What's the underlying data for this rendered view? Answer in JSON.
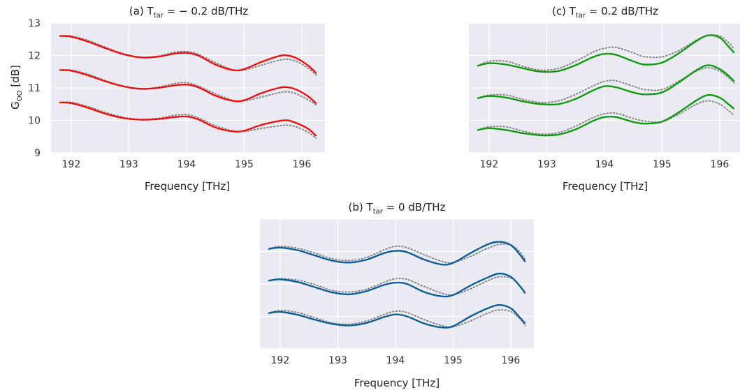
{
  "chart_data": [
    {
      "id": "a",
      "type": "line",
      "title_pre": "(a) T",
      "title_sub": "tar",
      "title_post": " = − 0.2 dB/THz",
      "xlabel": "Frequency [THz]",
      "ylabel_main": "G",
      "ylabel_sub": "OO",
      "ylabel_post": " [dB]",
      "xlim": [
        191.65,
        196.4
      ],
      "ylim": [
        9,
        13
      ],
      "xticks": [
        192,
        193,
        194,
        195,
        196
      ],
      "yticks": [
        9,
        10,
        11,
        12,
        13
      ],
      "grid": true,
      "line_color": "#ee1111",
      "ref_color": "#888888",
      "x": [
        191.8,
        192.0,
        192.3,
        192.6,
        192.9,
        193.2,
        193.5,
        193.8,
        194.0,
        194.2,
        194.5,
        194.8,
        195.0,
        195.3,
        195.6,
        195.75,
        195.9,
        196.1,
        196.25
      ],
      "series": [
        {
          "values": [
            12.6,
            12.58,
            12.42,
            12.22,
            12.04,
            11.94,
            11.96,
            12.06,
            12.08,
            12.0,
            11.72,
            11.55,
            11.58,
            11.8,
            11.98,
            12.0,
            11.92,
            11.7,
            11.45
          ]
        },
        {
          "values": [
            11.55,
            11.53,
            11.38,
            11.2,
            11.05,
            10.97,
            11.0,
            11.08,
            11.1,
            11.02,
            10.76,
            10.6,
            10.62,
            10.84,
            11.0,
            11.02,
            10.95,
            10.75,
            10.52
          ]
        },
        {
          "values": [
            10.55,
            10.53,
            10.38,
            10.2,
            10.07,
            10.02,
            10.04,
            10.1,
            10.12,
            10.03,
            9.78,
            9.66,
            9.68,
            9.86,
            9.98,
            10.0,
            9.92,
            9.75,
            9.52
          ]
        }
      ],
      "ref_series": [
        {
          "values": [
            12.6,
            12.6,
            12.46,
            12.25,
            12.06,
            11.95,
            11.98,
            12.1,
            12.12,
            12.04,
            11.78,
            11.56,
            11.55,
            11.7,
            11.85,
            11.88,
            11.82,
            11.62,
            11.4
          ]
        },
        {
          "values": [
            11.55,
            11.55,
            11.42,
            11.22,
            11.06,
            10.98,
            11.02,
            11.14,
            11.16,
            11.06,
            10.82,
            10.62,
            10.6,
            10.72,
            10.85,
            10.88,
            10.82,
            10.64,
            10.48
          ]
        },
        {
          "values": [
            10.55,
            10.56,
            10.42,
            10.24,
            10.1,
            10.03,
            10.06,
            10.16,
            10.18,
            10.08,
            9.84,
            9.68,
            9.66,
            9.75,
            9.83,
            9.85,
            9.8,
            9.64,
            9.45
          ]
        }
      ]
    },
    {
      "id": "c",
      "type": "line",
      "title_pre": "(c) T",
      "title_sub": "tar",
      "title_post": " = 0.2 dB/THz",
      "xlabel": "Frequency [THz]",
      "xlim": [
        191.65,
        196.4
      ],
      "ylim": [
        9,
        13
      ],
      "xticks": [
        192,
        193,
        194,
        195,
        196
      ],
      "yticks": [
        9,
        10,
        11,
        12,
        13
      ],
      "grid": true,
      "line_color": "#119911",
      "ref_color": "#888888",
      "x": [
        191.8,
        192.0,
        192.3,
        192.6,
        192.9,
        193.2,
        193.5,
        193.8,
        194.0,
        194.2,
        194.5,
        194.7,
        195.0,
        195.3,
        195.6,
        195.8,
        196.0,
        196.15,
        196.25
      ],
      "series": [
        {
          "values": [
            11.68,
            11.76,
            11.72,
            11.6,
            11.5,
            11.52,
            11.7,
            11.95,
            12.05,
            12.02,
            11.82,
            11.72,
            11.78,
            12.08,
            12.45,
            12.62,
            12.55,
            12.28,
            12.08
          ]
        },
        {
          "values": [
            10.68,
            10.75,
            10.7,
            10.58,
            10.5,
            10.5,
            10.66,
            10.92,
            11.05,
            11.02,
            10.86,
            10.8,
            10.86,
            11.18,
            11.55,
            11.7,
            11.58,
            11.38,
            11.2
          ]
        },
        {
          "values": [
            9.7,
            9.76,
            9.7,
            9.6,
            9.54,
            9.56,
            9.72,
            9.98,
            10.1,
            10.1,
            9.95,
            9.9,
            9.96,
            10.26,
            10.62,
            10.78,
            10.7,
            10.5,
            10.35
          ]
        }
      ],
      "ref_series": [
        {
          "values": [
            11.68,
            11.82,
            11.82,
            11.66,
            11.55,
            11.6,
            11.82,
            12.1,
            12.22,
            12.25,
            12.08,
            11.96,
            11.96,
            12.16,
            12.48,
            12.62,
            12.6,
            12.4,
            12.2
          ]
        },
        {
          "values": [
            10.68,
            10.78,
            10.78,
            10.64,
            10.55,
            10.6,
            10.8,
            11.06,
            11.2,
            11.22,
            11.05,
            10.95,
            10.95,
            11.22,
            11.52,
            11.62,
            11.52,
            11.32,
            11.16
          ]
        },
        {
          "values": [
            9.7,
            9.8,
            9.8,
            9.66,
            9.58,
            9.62,
            9.82,
            10.08,
            10.2,
            10.22,
            10.06,
            9.98,
            9.96,
            10.2,
            10.5,
            10.6,
            10.5,
            10.3,
            10.15
          ]
        }
      ]
    },
    {
      "id": "b",
      "type": "line",
      "title_pre": "(b) T",
      "title_sub": "tar",
      "title_post": " = 0 dB/THz",
      "xlabel": "Frequency [THz]",
      "xlim": [
        191.65,
        196.4
      ],
      "ylim": [
        9,
        13
      ],
      "xticks": [
        192,
        193,
        194,
        195,
        196
      ],
      "yticks": [
        9,
        10,
        11,
        12,
        13
      ],
      "grid": true,
      "line_color": "#0d5e94",
      "ref_color": "#888888",
      "x": [
        191.8,
        192.0,
        192.3,
        192.6,
        192.9,
        193.2,
        193.5,
        193.8,
        194.0,
        194.2,
        194.5,
        194.8,
        195.0,
        195.3,
        195.6,
        195.8,
        196.0,
        196.15,
        196.25
      ],
      "series": [
        {
          "values": [
            12.08,
            12.12,
            12.04,
            11.88,
            11.72,
            11.66,
            11.75,
            11.95,
            12.02,
            11.98,
            11.75,
            11.6,
            11.65,
            11.95,
            12.22,
            12.3,
            12.2,
            11.92,
            11.68
          ]
        },
        {
          "values": [
            11.1,
            11.14,
            11.06,
            10.9,
            10.74,
            10.68,
            10.78,
            10.97,
            11.04,
            11.0,
            10.75,
            10.62,
            10.66,
            10.95,
            11.2,
            11.32,
            11.22,
            10.95,
            10.72
          ]
        },
        {
          "values": [
            10.1,
            10.14,
            10.05,
            9.9,
            9.77,
            9.72,
            9.8,
            9.98,
            10.06,
            10.0,
            9.78,
            9.66,
            9.7,
            10.0,
            10.25,
            10.35,
            10.25,
            9.98,
            9.78
          ]
        }
      ],
      "ref_series": [
        {
          "values": [
            12.08,
            12.16,
            12.1,
            11.95,
            11.78,
            11.72,
            11.82,
            12.05,
            12.16,
            12.12,
            11.9,
            11.7,
            11.66,
            11.85,
            12.1,
            12.22,
            12.2,
            12.0,
            11.75
          ]
        },
        {
          "values": [
            11.1,
            11.16,
            11.12,
            10.98,
            10.8,
            10.75,
            10.84,
            11.05,
            11.16,
            11.14,
            10.92,
            10.72,
            10.66,
            10.85,
            11.1,
            11.22,
            11.18,
            10.95,
            10.7
          ]
        },
        {
          "values": [
            10.1,
            10.18,
            10.12,
            9.96,
            9.8,
            9.76,
            9.86,
            10.06,
            10.16,
            10.12,
            9.9,
            9.72,
            9.68,
            9.86,
            10.1,
            10.2,
            10.15,
            9.94,
            9.72
          ]
        }
      ]
    }
  ]
}
